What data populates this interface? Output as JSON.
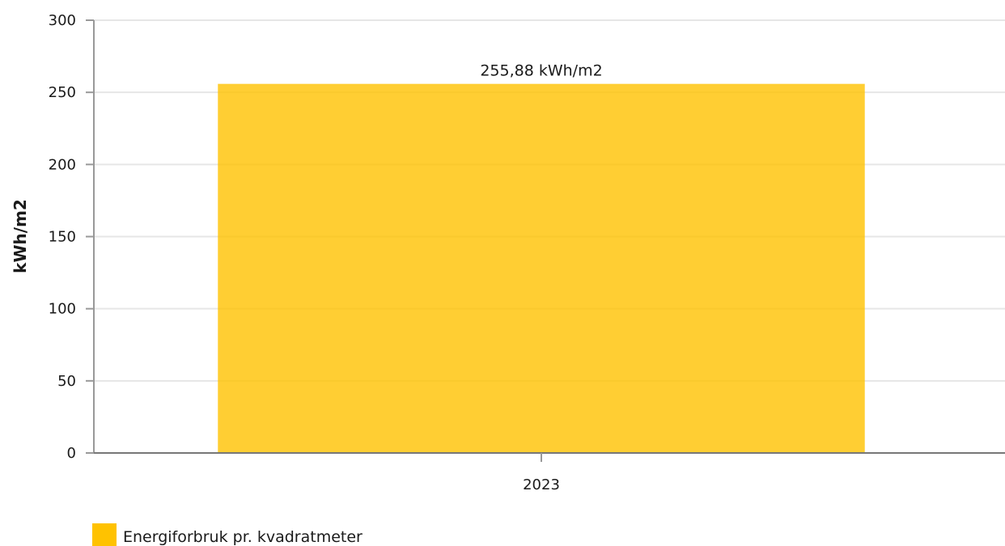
{
  "chart_data": {
    "type": "bar",
    "categories": [
      "2023"
    ],
    "series": [
      {
        "name": "Energiforbruk pr. kvadratmeter",
        "values": [
          255.88
        ],
        "color": "#FFC200"
      }
    ],
    "data_labels": [
      "255,88 kWh/m2"
    ],
    "xlabel": "",
    "ylabel": "kWh/m2",
    "ylim": [
      0,
      300
    ],
    "yticks": [
      0,
      50,
      100,
      150,
      200,
      250,
      300
    ],
    "grid": true,
    "legend": "bottom-left"
  }
}
